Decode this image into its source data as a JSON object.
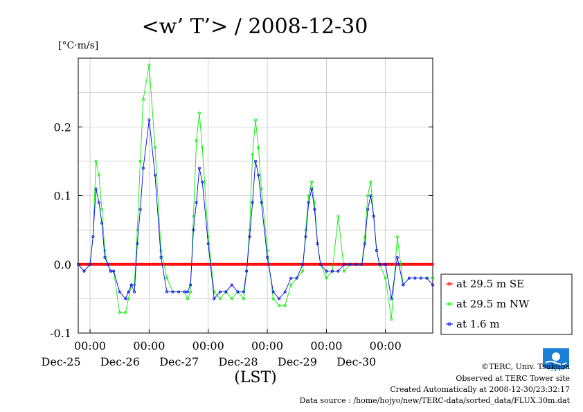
{
  "chart_data": {
    "type": "line",
    "title": "<w’ T’> / 2008-12-30",
    "ylabel": "[°C·m/s]",
    "xlabel": "(LST)",
    "ylim": [
      -0.1,
      0.3
    ],
    "yticks": [
      -0.1,
      0.0,
      0.1,
      0.2
    ],
    "ytick_labels": [
      "-0.1",
      "0.0",
      "0.1",
      "0.2"
    ],
    "xlim": [
      -0.2,
      5.8
    ],
    "xticks": [
      0,
      1,
      2,
      3,
      4,
      5
    ],
    "xtick_labels": [
      "00:00",
      "00:00",
      "00:00",
      "00:00",
      "00:00",
      "00:00"
    ],
    "day_labels": [
      {
        "label": "Dec-25",
        "x": -0.5
      },
      {
        "label": "Dec-26",
        "x": 0.5
      },
      {
        "label": "Dec-27",
        "x": 1.5
      },
      {
        "label": "Dec-28",
        "x": 2.5
      },
      {
        "label": "Dec-29",
        "x": 3.5
      },
      {
        "label": "Dec-30",
        "x": 4.5
      }
    ],
    "grid": true,
    "legend_placement": "right",
    "series": [
      {
        "name": "at 29.5 m SE",
        "color": "#ff0000",
        "x": [
          -0.2,
          5.8
        ],
        "y": [
          0.0,
          0.0
        ],
        "constant": true
      },
      {
        "name": "at 29.5 m NW",
        "color": "#00ee00",
        "x": [
          -0.2,
          -0.1,
          0.0,
          0.05,
          0.1,
          0.15,
          0.2,
          0.25,
          0.3,
          0.35,
          0.4,
          0.5,
          0.6,
          0.65,
          0.7,
          0.75,
          0.8,
          0.85,
          0.9,
          1.0,
          1.1,
          1.2,
          1.3,
          1.4,
          1.5,
          1.6,
          1.65,
          1.7,
          1.75,
          1.8,
          1.85,
          1.9,
          2.0,
          2.1,
          2.2,
          2.3,
          2.4,
          2.5,
          2.6,
          2.65,
          2.7,
          2.75,
          2.8,
          2.85,
          2.9,
          3.0,
          3.1,
          3.2,
          3.3,
          3.4,
          3.5,
          3.6,
          3.65,
          3.7,
          3.75,
          3.8,
          3.85,
          3.9,
          4.0,
          4.1,
          4.2,
          4.3,
          4.4,
          4.5,
          4.6,
          4.65,
          4.7,
          4.75,
          4.8,
          4.85,
          4.9,
          5.0,
          5.1,
          5.2,
          5.3,
          5.4,
          5.5,
          5.6,
          5.7,
          5.8
        ],
        "y": [
          0.0,
          -0.01,
          0.0,
          0.04,
          0.15,
          0.13,
          0.08,
          0.02,
          0.0,
          -0.01,
          -0.01,
          -0.07,
          -0.07,
          -0.05,
          -0.03,
          -0.03,
          0.05,
          0.15,
          0.24,
          0.29,
          0.17,
          0.02,
          -0.02,
          -0.04,
          -0.04,
          -0.04,
          -0.05,
          -0.04,
          0.07,
          0.18,
          0.22,
          0.17,
          0.04,
          -0.04,
          -0.05,
          -0.04,
          -0.05,
          -0.04,
          -0.05,
          -0.01,
          0.05,
          0.16,
          0.21,
          0.17,
          0.11,
          0.02,
          -0.05,
          -0.06,
          -0.06,
          -0.03,
          -0.02,
          -0.01,
          0.05,
          0.1,
          0.12,
          0.09,
          0.03,
          0.0,
          -0.02,
          -0.01,
          0.07,
          -0.01,
          0.0,
          0.0,
          0.0,
          0.04,
          0.1,
          0.12,
          0.07,
          0.02,
          0.0,
          -0.02,
          -0.08,
          0.04,
          -0.03,
          -0.02,
          -0.02,
          -0.02,
          -0.02,
          -0.02
        ]
      },
      {
        "name": "at 1.6 m",
        "color": "#0000ee",
        "x": [
          -0.2,
          -0.1,
          0.0,
          0.05,
          0.1,
          0.15,
          0.2,
          0.25,
          0.3,
          0.35,
          0.4,
          0.5,
          0.6,
          0.65,
          0.7,
          0.75,
          0.8,
          0.85,
          0.9,
          1.0,
          1.1,
          1.2,
          1.3,
          1.4,
          1.5,
          1.6,
          1.65,
          1.7,
          1.75,
          1.8,
          1.85,
          1.9,
          2.0,
          2.1,
          2.2,
          2.3,
          2.4,
          2.5,
          2.6,
          2.65,
          2.7,
          2.75,
          2.8,
          2.85,
          2.9,
          3.0,
          3.1,
          3.2,
          3.3,
          3.4,
          3.5,
          3.6,
          3.65,
          3.7,
          3.75,
          3.8,
          3.85,
          3.9,
          4.0,
          4.1,
          4.2,
          4.3,
          4.4,
          4.5,
          4.6,
          4.65,
          4.7,
          4.75,
          4.8,
          4.85,
          4.9,
          5.0,
          5.1,
          5.2,
          5.3,
          5.4,
          5.5,
          5.6,
          5.7,
          5.8
        ],
        "y": [
          0.0,
          -0.01,
          0.0,
          0.04,
          0.11,
          0.09,
          0.06,
          0.01,
          0.0,
          -0.01,
          -0.01,
          -0.04,
          -0.05,
          -0.04,
          -0.03,
          -0.04,
          0.03,
          0.08,
          0.14,
          0.21,
          0.13,
          0.01,
          -0.04,
          -0.04,
          -0.04,
          -0.04,
          -0.04,
          -0.03,
          0.05,
          0.09,
          0.14,
          0.12,
          0.03,
          -0.05,
          -0.04,
          -0.04,
          -0.03,
          -0.04,
          -0.04,
          -0.01,
          0.04,
          0.09,
          0.15,
          0.13,
          0.09,
          0.01,
          -0.04,
          -0.05,
          -0.04,
          -0.02,
          -0.02,
          0.0,
          0.04,
          0.09,
          0.11,
          0.08,
          0.03,
          0.0,
          -0.01,
          -0.01,
          -0.01,
          0.0,
          0.0,
          0.0,
          0.0,
          0.03,
          0.08,
          0.1,
          0.07,
          0.02,
          0.0,
          0.0,
          -0.05,
          0.01,
          -0.03,
          -0.02,
          -0.02,
          -0.02,
          -0.02,
          -0.03
        ]
      }
    ]
  },
  "footer": {
    "copyright": "©TERC, Univ. Tsukuba",
    "observed": "Observed at TERC Tower site",
    "created": "Created Automatically at 2008-12-30/23:32:17",
    "source": "Data source : /home/hojyo/new/TERC-data/sorted_data/FLUX.30m.dat",
    "logo_text": "TERC",
    "logo_color": "#1a7fd6"
  }
}
